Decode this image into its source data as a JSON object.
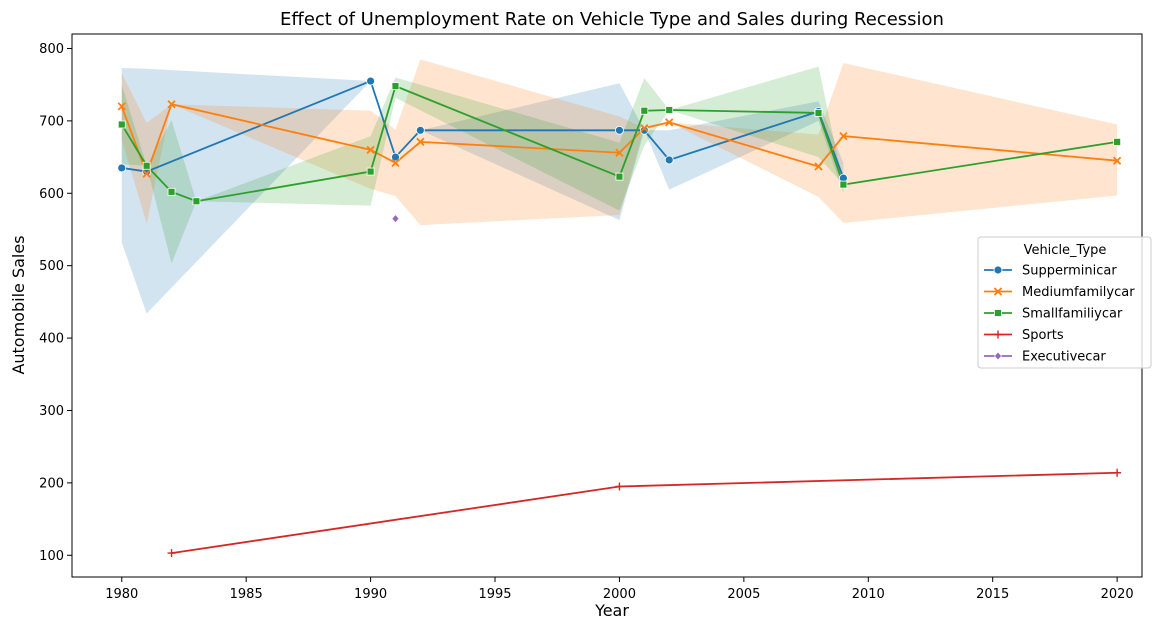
{
  "chart_data": {
    "type": "line",
    "title": "Effect of Unemployment Rate on Vehicle Type and Sales during Recession",
    "xlabel": "Year",
    "ylabel": "Automobile Sales",
    "xlim": [
      1978,
      2021
    ],
    "ylim": [
      70,
      820
    ],
    "xticks": [
      1980,
      1985,
      1990,
      1995,
      2000,
      2005,
      2010,
      2015,
      2020
    ],
    "yticks": [
      100,
      200,
      300,
      400,
      500,
      600,
      700,
      800
    ],
    "grid": false,
    "legend": {
      "title": "Vehicle_Type",
      "position": "center-right"
    },
    "series": [
      {
        "name": "Supperminicar",
        "color": "#1f77b4",
        "marker": "circle",
        "x": [
          1980,
          1981,
          1990,
          1991,
          1992,
          2000,
          2001,
          2002,
          2008,
          2009
        ],
        "y": [
          635,
          630,
          755,
          650,
          687,
          687,
          687,
          646,
          713,
          621
        ],
        "band_low": [
          532,
          434,
          755,
          650,
          687,
          563,
          687,
          605,
          700,
          600
        ],
        "band_high": [
          773,
          772,
          755,
          650,
          687,
          752,
          687,
          687,
          727,
          642
        ]
      },
      {
        "name": "Mediumfamilycar",
        "color": "#ff7f0e",
        "marker": "x",
        "x": [
          1980,
          1981,
          1982,
          1990,
          1991,
          1992,
          2000,
          2001,
          2002,
          2008,
          2009,
          2020
        ],
        "y": [
          720,
          627,
          723,
          660,
          642,
          671,
          656,
          690,
          698,
          637,
          679,
          645
        ],
        "band_low": [
          674,
          558,
          723,
          606,
          596,
          556,
          570,
          690,
          698,
          595,
          559,
          597
        ],
        "band_high": [
          766,
          697,
          723,
          714,
          688,
          785,
          706,
          690,
          698,
          681,
          780,
          695
        ]
      },
      {
        "name": "Smallfamiliycar",
        "color": "#2ca02c",
        "marker": "square",
        "x": [
          1980,
          1981,
          1982,
          1983,
          1990,
          1991,
          2000,
          2001,
          2002,
          2008,
          2009,
          2020
        ],
        "y": [
          695,
          638,
          602,
          589,
          630,
          748,
          623,
          714,
          715,
          711,
          612,
          671
        ],
        "band_low": [
          640,
          638,
          503,
          589,
          583,
          732,
          576,
          666,
          715,
          650,
          612,
          671
        ],
        "band_high": [
          750,
          638,
          701,
          589,
          679,
          760,
          670,
          759,
          715,
          775,
          612,
          671
        ]
      },
      {
        "name": "Sports",
        "color": "#d62728",
        "marker": "plus",
        "x": [
          1982,
          2000,
          2020
        ],
        "y": [
          103,
          195,
          214
        ]
      },
      {
        "name": "Executivecar",
        "color": "#9467bd",
        "marker": "diamond",
        "x": [
          1991
        ],
        "y": [
          565
        ]
      }
    ]
  }
}
